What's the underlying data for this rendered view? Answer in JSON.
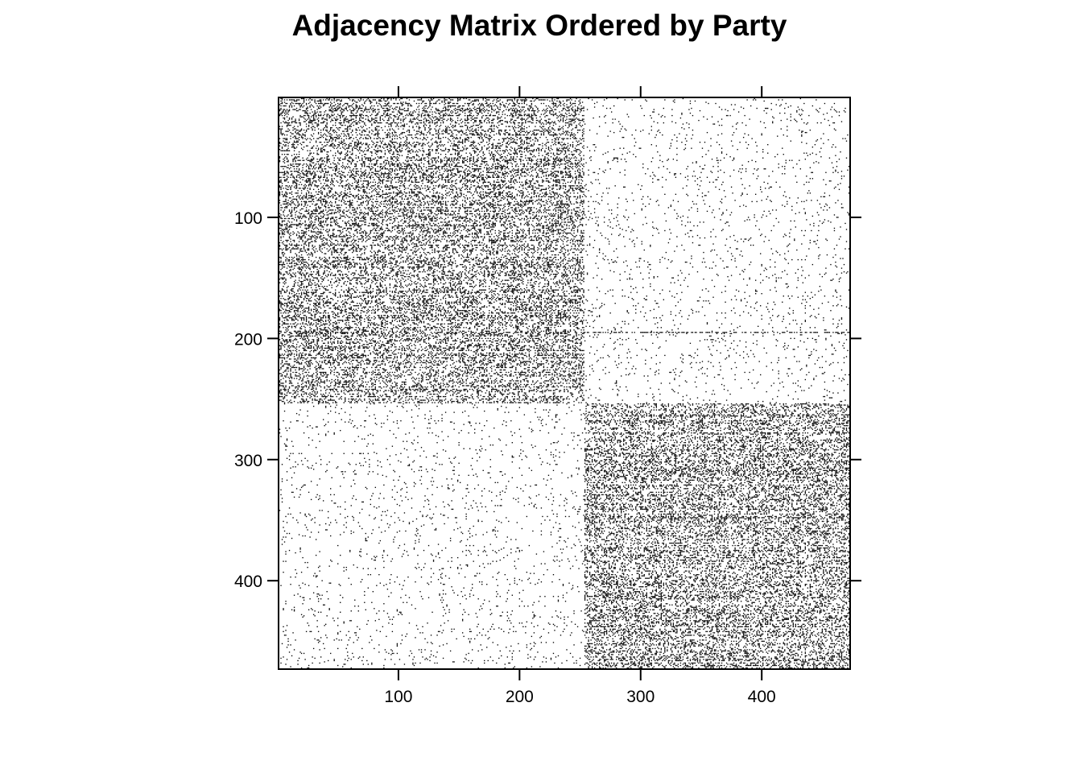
{
  "chart_data": {
    "type": "heatmap",
    "title": "Adjacency Matrix Ordered by Party",
    "xlabel": "",
    "ylabel": "",
    "n": 473,
    "xlim": [
      1,
      473
    ],
    "ylim": [
      473,
      1
    ],
    "x_ticks": [
      100,
      200,
      300,
      400
    ],
    "y_ticks": [
      100,
      200,
      300,
      400
    ],
    "x_tick_labels": [
      "100",
      "200",
      "300",
      "400"
    ],
    "y_tick_labels": [
      "100",
      "200",
      "300",
      "400"
    ],
    "blocks": [
      {
        "rows": [
          1,
          253
        ],
        "cols": [
          1,
          253
        ],
        "density": 0.3
      },
      {
        "rows": [
          1,
          253
        ],
        "cols": [
          254,
          473
        ],
        "density": 0.035
      },
      {
        "rows": [
          254,
          473
        ],
        "cols": [
          1,
          253
        ],
        "density": 0.035
      },
      {
        "rows": [
          254,
          473
        ],
        "cols": [
          254,
          473
        ],
        "density": 0.32
      }
    ],
    "dense_lines": [
      {
        "orientation": "row",
        "index": 195,
        "span": [
          1,
          473
        ]
      },
      {
        "orientation": "row",
        "index": 348,
        "span": [
          254,
          473
        ]
      }
    ],
    "grid": false,
    "legend": "none",
    "colors": {
      "point": "#000000",
      "background": "#ffffff",
      "frame": "#000000"
    }
  }
}
